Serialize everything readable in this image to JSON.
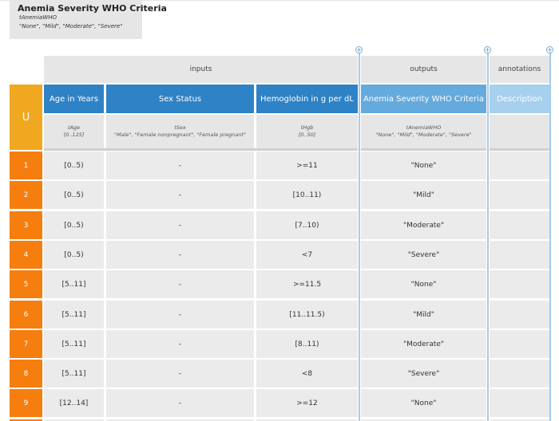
{
  "table": {
    "name": "Anemia Severity WHO Criteria",
    "variable": "tAnemiaWHO",
    "allowed_values": "\"None\", \"Mild\", \"Moderate\", \"Severe\""
  },
  "groups": {
    "inputs": "inputs",
    "outputs": "outputs",
    "annotations": "annotations"
  },
  "hit_policy": "U",
  "columns": [
    {
      "label": "Age in Years",
      "var": "tAge",
      "range": "[0..125]"
    },
    {
      "label": "Sex Status",
      "var": "tSex",
      "range": "\"Male\", \"Female nonpregnant\", \"Female pregnant\""
    },
    {
      "label": "Hemoglobin in g per dL",
      "var": "tHgb",
      "range": "[0..50]"
    },
    {
      "label": "Anemia Severity WHO Criteria",
      "var": "tAnemiaWHO",
      "range": "\"None\", \"Mild\", \"Moderate\", \"Severe\""
    },
    {
      "label": "Description",
      "var": "",
      "range": ""
    }
  ],
  "rows": [
    {
      "num": "1",
      "age": "[0..5)",
      "sex": "-",
      "hgb": ">=11",
      "out": "\"None\"",
      "desc": ""
    },
    {
      "num": "2",
      "age": "[0..5)",
      "sex": "-",
      "hgb": "[10..11)",
      "out": "\"Mild\"",
      "desc": ""
    },
    {
      "num": "3",
      "age": "[0..5)",
      "sex": "-",
      "hgb": "[7..10)",
      "out": "\"Moderate\"",
      "desc": ""
    },
    {
      "num": "4",
      "age": "[0..5)",
      "sex": "-",
      "hgb": "<7",
      "out": "\"Severe\"",
      "desc": ""
    },
    {
      "num": "5",
      "age": "[5..11]",
      "sex": "-",
      "hgb": ">=11.5",
      "out": "\"None\"",
      "desc": ""
    },
    {
      "num": "6",
      "age": "[5..11]",
      "sex": "-",
      "hgb": "[11..11.5)",
      "out": "\"Mild\"",
      "desc": ""
    },
    {
      "num": "7",
      "age": "[5..11]",
      "sex": "-",
      "hgb": "[8..11)",
      "out": "\"Moderate\"",
      "desc": ""
    },
    {
      "num": "8",
      "age": "[5..11]",
      "sex": "-",
      "hgb": "<8",
      "out": "\"Severe\"",
      "desc": ""
    },
    {
      "num": "9",
      "age": "[12..14]",
      "sex": "-",
      "hgb": ">=12",
      "out": "\"None\"",
      "desc": ""
    }
  ],
  "icons": {
    "add": "plus-circle-icon"
  },
  "colors": {
    "input_header": "#2e82c6",
    "output_header": "#65aadd",
    "annotation_header": "#a6d0ee",
    "hit_policy": "#f0a821",
    "row_number": "#f57e0e"
  }
}
